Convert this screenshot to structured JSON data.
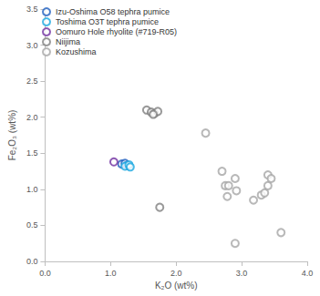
{
  "chart_data": {
    "type": "scatter",
    "x_label": "K₂O (wt%)",
    "y_label": "Fe₂O₃ (wt%)",
    "xlim": [
      0,
      4
    ],
    "xticks": [
      {
        "value": 0,
        "label": "0.0"
      },
      {
        "value": 1,
        "label": "1.0"
      },
      {
        "value": 2,
        "label": "2.0"
      },
      {
        "value": 3,
        "label": "3.0"
      },
      {
        "value": 4,
        "label": "4.0"
      }
    ],
    "ylim": [
      0,
      3.5
    ],
    "yticks": [
      {
        "value": 0,
        "label": "0.0"
      },
      0.5,
      {
        "value": 1,
        "label": "1.0"
      },
      1.5,
      {
        "value": 2,
        "label": "2.0"
      },
      2.5,
      {
        "value": 3,
        "label": "3.0"
      },
      3.5
    ],
    "grid": false,
    "legend": "top-left",
    "marker": "open-circle",
    "series": [
      {
        "name": "Izu-Oshima O58 tephra pumice",
        "color": "#1f5fbf",
        "x": [
          1.17,
          1.22,
          1.25
        ],
        "values": [
          1.35,
          1.36,
          1.33
        ]
      },
      {
        "name": "Toshima O3T tephra pumice",
        "color": "#1aa7e0",
        "x": [
          1.22,
          1.28,
          1.3
        ],
        "values": [
          1.32,
          1.34,
          1.31
        ]
      },
      {
        "name": "Oomuro Hole rhyolite (#719-R05)",
        "color": "#7030a0",
        "x": [
          1.05
        ],
        "values": [
          1.38
        ]
      },
      {
        "name": "Niijima",
        "color": "#7f7f7f",
        "x": [
          1.55,
          1.62,
          1.67,
          1.72,
          1.65,
          1.75
        ],
        "values": [
          2.1,
          2.07,
          2.05,
          2.08,
          2.04,
          0.75
        ]
      },
      {
        "name": "Kozushima",
        "color": "#a6a6a6",
        "x": [
          2.45,
          2.7,
          2.75,
          2.78,
          2.8,
          2.9,
          2.92,
          2.9,
          3.18,
          3.3,
          3.35,
          3.4,
          3.4,
          3.45,
          3.6
        ],
        "values": [
          1.78,
          1.25,
          1.05,
          0.9,
          1.05,
          1.15,
          0.98,
          0.25,
          0.85,
          0.92,
          0.95,
          1.05,
          1.2,
          1.15,
          0.4
        ]
      }
    ]
  }
}
